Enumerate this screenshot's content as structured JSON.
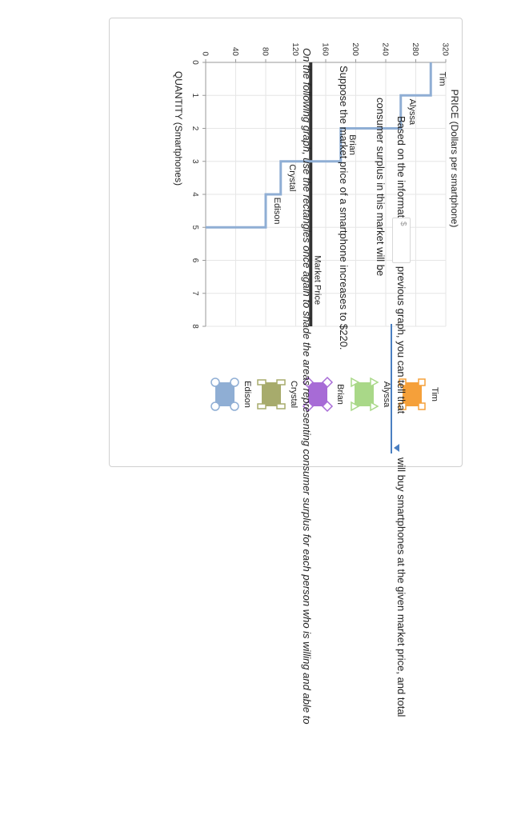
{
  "chart_data": {
    "type": "line",
    "title": "",
    "xlabel": "QUANTITY (Smartphones)",
    "ylabel": "PRICE (Dollars per smartphone)",
    "xlim": [
      0,
      8
    ],
    "ylim": [
      0,
      320
    ],
    "x_ticks": [
      0,
      1,
      2,
      3,
      4,
      5,
      6,
      7,
      8
    ],
    "y_ticks": [
      0,
      40,
      80,
      120,
      160,
      200,
      240,
      280,
      320
    ],
    "grid": true,
    "series": [
      {
        "name": "Demand",
        "color": "#8faed4",
        "style": "step",
        "points": [
          [
            0,
            300
          ],
          [
            1,
            300
          ],
          [
            1,
            260
          ],
          [
            2,
            260
          ],
          [
            2,
            180
          ],
          [
            3,
            180
          ],
          [
            3,
            100
          ],
          [
            4,
            100
          ],
          [
            4,
            80
          ],
          [
            5,
            80
          ],
          [
            5,
            0
          ]
        ]
      }
    ],
    "market_price": {
      "label": "Market Price",
      "value": 140,
      "color": "#333333"
    },
    "step_labels": [
      {
        "text": "Tim",
        "x": 0.5,
        "y": 300
      },
      {
        "text": "Alyssa",
        "x": 1.5,
        "y": 260
      },
      {
        "text": "Brian",
        "x": 2.5,
        "y": 180
      },
      {
        "text": "Crystal",
        "x": 3.5,
        "y": 100
      },
      {
        "text": "Edison",
        "x": 4.5,
        "y": 80
      }
    ],
    "legend": {
      "position": "right",
      "items": [
        {
          "label": "Tim",
          "color": "#f5a03a",
          "marker": "square"
        },
        {
          "label": "Alyssa",
          "color": "#a9d888",
          "marker": "triangle"
        },
        {
          "label": "Brian",
          "color": "#a76bd6",
          "marker": "diamond"
        },
        {
          "label": "Crystal",
          "color": "#a7ab6c",
          "marker": "dash-square"
        },
        {
          "label": "Edison",
          "color": "#8faed4",
          "marker": "circle"
        }
      ]
    }
  },
  "question": {
    "line1_before": "Based on the information on the previous graph, you can tell that",
    "line1_after": "will buy smartphones at the given market price, and total",
    "line2": "consumer surplus in this market will be",
    "line2_end": ".",
    "currency_symbol": "$",
    "dropdown_value": "",
    "consumer_surplus_value": ""
  },
  "scenario": "Suppose the market price of a smartphone increases to $220.",
  "instruction": "On the following graph, use the rectangles once again to shade the areas representing consumer surplus for each person who is willing and able to"
}
